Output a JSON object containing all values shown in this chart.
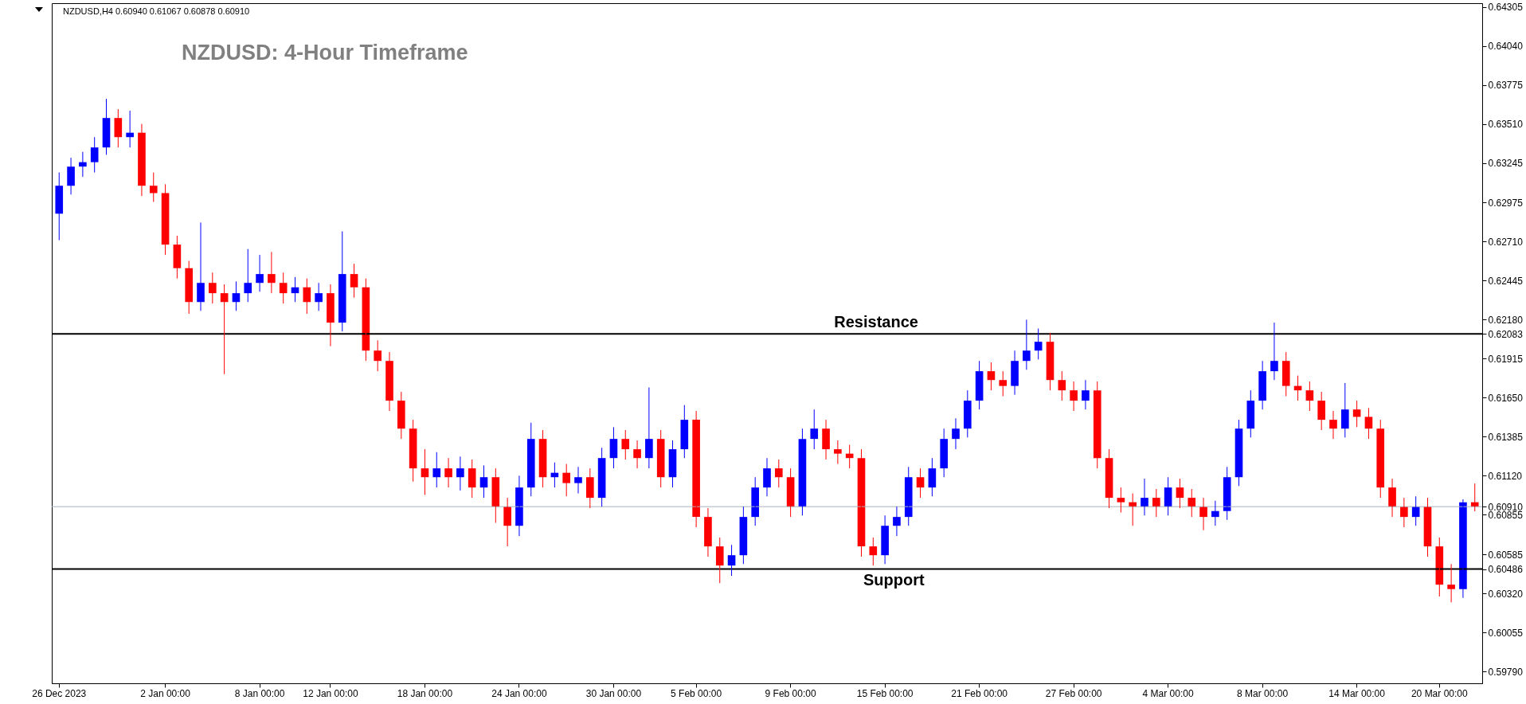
{
  "chart_data": {
    "type": "candlestick",
    "title": "NZDUSD: 4-Hour Timeframe",
    "annotations": [
      "NZDUSD,H4  0.60940 0.61067 0.60878 0.60910"
    ],
    "categories": [
      "26 Dec 2023",
      null,
      null,
      null,
      null,
      null,
      null,
      null,
      null,
      "2 Jan 00:00",
      null,
      null,
      null,
      null,
      null,
      null,
      null,
      "8 Jan 00:00",
      null,
      null,
      null,
      null,
      null,
      "12 Jan 00:00",
      null,
      null,
      null,
      null,
      null,
      null,
      null,
      "18 Jan 00:00",
      null,
      null,
      null,
      null,
      null,
      null,
      null,
      "24 Jan 00:00",
      null,
      null,
      null,
      null,
      null,
      null,
      null,
      "30 Jan 00:00",
      null,
      null,
      null,
      null,
      null,
      null,
      "5 Feb 00:00",
      null,
      null,
      null,
      null,
      null,
      null,
      null,
      "9 Feb 00:00",
      null,
      null,
      null,
      null,
      null,
      null,
      null,
      "15 Feb 00:00",
      null,
      null,
      null,
      null,
      null,
      null,
      null,
      "21 Feb 00:00",
      null,
      null,
      null,
      null,
      null,
      null,
      null,
      "27 Feb 00:00",
      null,
      null,
      null,
      null,
      null,
      null,
      null,
      "4 Mar 00:00",
      null,
      null,
      null,
      null,
      null,
      null,
      null,
      "8 Mar 00:00",
      null,
      null,
      null,
      null,
      null,
      null,
      null,
      "14 Mar 00:00",
      null,
      null,
      null,
      null,
      null,
      null,
      "20 Mar 00:00",
      null,
      null,
      null
    ],
    "ohlc": [
      [
        0.629,
        0.6318,
        0.6272,
        0.6309
      ],
      [
        0.6309,
        0.6328,
        0.6303,
        0.6322
      ],
      [
        0.6322,
        0.6332,
        0.6315,
        0.6325
      ],
      [
        0.6325,
        0.6342,
        0.6318,
        0.6335
      ],
      [
        0.6335,
        0.6368,
        0.633,
        0.6355
      ],
      [
        0.6355,
        0.6361,
        0.6335,
        0.6342
      ],
      [
        0.6342,
        0.636,
        0.6335,
        0.6345
      ],
      [
        0.6345,
        0.6351,
        0.6302,
        0.6309
      ],
      [
        0.6309,
        0.6318,
        0.6298,
        0.6304
      ],
      [
        0.6304,
        0.631,
        0.6262,
        0.6269
      ],
      [
        0.6269,
        0.6275,
        0.6246,
        0.6253
      ],
      [
        0.6253,
        0.6258,
        0.6222,
        0.623
      ],
      [
        0.623,
        0.6284,
        0.6224,
        0.6243
      ],
      [
        0.6243,
        0.625,
        0.6229,
        0.6236
      ],
      [
        0.6236,
        0.6242,
        0.6181,
        0.623
      ],
      [
        0.623,
        0.6244,
        0.6224,
        0.6236
      ],
      [
        0.6236,
        0.6266,
        0.623,
        0.6243
      ],
      [
        0.6243,
        0.6262,
        0.6237,
        0.6249
      ],
      [
        0.6249,
        0.6264,
        0.6236,
        0.6243
      ],
      [
        0.6243,
        0.625,
        0.6229,
        0.6236
      ],
      [
        0.6236,
        0.6247,
        0.623,
        0.624
      ],
      [
        0.624,
        0.6246,
        0.6222,
        0.623
      ],
      [
        0.623,
        0.6243,
        0.6224,
        0.6236
      ],
      [
        0.6236,
        0.6242,
        0.62,
        0.6216
      ],
      [
        0.6216,
        0.6278,
        0.621,
        0.6249
      ],
      [
        0.6249,
        0.6256,
        0.6233,
        0.624
      ],
      [
        0.624,
        0.6246,
        0.619,
        0.6197
      ],
      [
        0.6197,
        0.6204,
        0.6183,
        0.619
      ],
      [
        0.619,
        0.6196,
        0.6156,
        0.6163
      ],
      [
        0.6163,
        0.6169,
        0.6137,
        0.6144
      ],
      [
        0.6144,
        0.615,
        0.6108,
        0.6117
      ],
      [
        0.6117,
        0.613,
        0.6099,
        0.6111
      ],
      [
        0.6111,
        0.6128,
        0.6104,
        0.6117
      ],
      [
        0.6117,
        0.6124,
        0.6104,
        0.6111
      ],
      [
        0.6111,
        0.6125,
        0.6102,
        0.6117
      ],
      [
        0.6117,
        0.6123,
        0.6097,
        0.6104
      ],
      [
        0.6104,
        0.6119,
        0.6097,
        0.6111
      ],
      [
        0.6111,
        0.6117,
        0.608,
        0.6091
      ],
      [
        0.6091,
        0.6097,
        0.6064,
        0.6078
      ],
      [
        0.6078,
        0.6112,
        0.6071,
        0.6104
      ],
      [
        0.6104,
        0.6148,
        0.6098,
        0.6137
      ],
      [
        0.6137,
        0.6143,
        0.6104,
        0.6111
      ],
      [
        0.6111,
        0.6121,
        0.6104,
        0.6114
      ],
      [
        0.6114,
        0.612,
        0.6098,
        0.6107
      ],
      [
        0.6107,
        0.6118,
        0.61,
        0.6111
      ],
      [
        0.6111,
        0.6117,
        0.609,
        0.6097
      ],
      [
        0.6097,
        0.6131,
        0.6091,
        0.6124
      ],
      [
        0.6124,
        0.6145,
        0.6117,
        0.6137
      ],
      [
        0.6137,
        0.6143,
        0.6123,
        0.613
      ],
      [
        0.613,
        0.6136,
        0.6117,
        0.6124
      ],
      [
        0.6124,
        0.6172,
        0.6117,
        0.6137
      ],
      [
        0.6137,
        0.6143,
        0.6104,
        0.6111
      ],
      [
        0.6111,
        0.6136,
        0.6104,
        0.613
      ],
      [
        0.613,
        0.616,
        0.6124,
        0.615
      ],
      [
        0.615,
        0.6156,
        0.6077,
        0.6084
      ],
      [
        0.6084,
        0.609,
        0.6057,
        0.6064
      ],
      [
        0.6064,
        0.607,
        0.6039,
        0.6051
      ],
      [
        0.6051,
        0.6065,
        0.6044,
        0.6058
      ],
      [
        0.6058,
        0.6091,
        0.6052,
        0.6084
      ],
      [
        0.6084,
        0.6111,
        0.6078,
        0.6104
      ],
      [
        0.6104,
        0.6124,
        0.6098,
        0.6117
      ],
      [
        0.6117,
        0.6123,
        0.6104,
        0.6111
      ],
      [
        0.6111,
        0.6117,
        0.6084,
        0.6091
      ],
      [
        0.6091,
        0.6144,
        0.6085,
        0.6137
      ],
      [
        0.6137,
        0.6157,
        0.613,
        0.6144
      ],
      [
        0.6144,
        0.615,
        0.6123,
        0.613
      ],
      [
        0.613,
        0.6136,
        0.612,
        0.6127
      ],
      [
        0.6127,
        0.6133,
        0.6117,
        0.6124
      ],
      [
        0.6124,
        0.613,
        0.6057,
        0.6064
      ],
      [
        0.6064,
        0.607,
        0.6051,
        0.6058
      ],
      [
        0.6058,
        0.6085,
        0.6052,
        0.6078
      ],
      [
        0.6078,
        0.6091,
        0.6071,
        0.6084
      ],
      [
        0.6084,
        0.6118,
        0.6078,
        0.6111
      ],
      [
        0.6111,
        0.6117,
        0.6097,
        0.6104
      ],
      [
        0.6104,
        0.6124,
        0.6098,
        0.6117
      ],
      [
        0.6117,
        0.6144,
        0.6111,
        0.6137
      ],
      [
        0.6137,
        0.6151,
        0.613,
        0.6144
      ],
      [
        0.6144,
        0.617,
        0.6138,
        0.6163
      ],
      [
        0.6163,
        0.619,
        0.6157,
        0.6183
      ],
      [
        0.6183,
        0.6189,
        0.617,
        0.6177
      ],
      [
        0.6177,
        0.6183,
        0.6166,
        0.6173
      ],
      [
        0.6173,
        0.6197,
        0.6167,
        0.619
      ],
      [
        0.619,
        0.6218,
        0.6184,
        0.6197
      ],
      [
        0.6197,
        0.6212,
        0.6191,
        0.6203
      ],
      [
        0.6203,
        0.6209,
        0.617,
        0.6177
      ],
      [
        0.6177,
        0.6183,
        0.6163,
        0.617
      ],
      [
        0.617,
        0.6176,
        0.6156,
        0.6163
      ],
      [
        0.6163,
        0.6177,
        0.6157,
        0.617
      ],
      [
        0.617,
        0.6176,
        0.6117,
        0.6124
      ],
      [
        0.6124,
        0.613,
        0.609,
        0.6097
      ],
      [
        0.6097,
        0.6104,
        0.6087,
        0.6094
      ],
      [
        0.6094,
        0.61,
        0.6078,
        0.6091
      ],
      [
        0.6091,
        0.611,
        0.6085,
        0.6097
      ],
      [
        0.6097,
        0.6103,
        0.6084,
        0.6091
      ],
      [
        0.6091,
        0.6111,
        0.6085,
        0.6104
      ],
      [
        0.6104,
        0.611,
        0.609,
        0.6097
      ],
      [
        0.6097,
        0.6103,
        0.6084,
        0.6091
      ],
      [
        0.6091,
        0.6097,
        0.6075,
        0.6084
      ],
      [
        0.6084,
        0.6095,
        0.6078,
        0.6088
      ],
      [
        0.6088,
        0.6118,
        0.6082,
        0.6111
      ],
      [
        0.6111,
        0.615,
        0.6105,
        0.6144
      ],
      [
        0.6144,
        0.617,
        0.6138,
        0.6163
      ],
      [
        0.6163,
        0.619,
        0.6157,
        0.6183
      ],
      [
        0.6183,
        0.6216,
        0.6177,
        0.619
      ],
      [
        0.619,
        0.6196,
        0.6166,
        0.6173
      ],
      [
        0.6173,
        0.618,
        0.6163,
        0.617
      ],
      [
        0.617,
        0.6176,
        0.6156,
        0.6163
      ],
      [
        0.6163,
        0.6169,
        0.6143,
        0.615
      ],
      [
        0.615,
        0.6156,
        0.6137,
        0.6144
      ],
      [
        0.6144,
        0.6175,
        0.6138,
        0.6157
      ],
      [
        0.6157,
        0.6163,
        0.6145,
        0.6152
      ],
      [
        0.6152,
        0.6158,
        0.6137,
        0.6144
      ],
      [
        0.6144,
        0.615,
        0.6097,
        0.6104
      ],
      [
        0.6104,
        0.611,
        0.6084,
        0.6091
      ],
      [
        0.6091,
        0.6097,
        0.6077,
        0.6084
      ],
      [
        0.6084,
        0.6098,
        0.6078,
        0.6091
      ],
      [
        0.6091,
        0.6097,
        0.6057,
        0.6064
      ],
      [
        0.6064,
        0.607,
        0.603,
        0.6038
      ],
      [
        0.6038,
        0.6052,
        0.6026,
        0.6035
      ],
      [
        0.6035,
        0.6096,
        0.6029,
        0.6094
      ],
      [
        0.6094,
        0.61067,
        0.60878,
        0.6091
      ]
    ],
    "colors": [
      "#0000ff",
      "#0000ff",
      "#0000ff",
      "#0000ff",
      "#0000ff",
      "#ff0000",
      "#0000ff",
      "#ff0000",
      "#ff0000",
      "#ff0000",
      "#ff0000",
      "#ff0000",
      "#0000ff",
      "#ff0000",
      "#ff0000",
      "#0000ff",
      "#0000ff",
      "#0000ff",
      "#ff0000",
      "#ff0000",
      "#0000ff",
      "#ff0000",
      "#0000ff",
      "#ff0000",
      "#0000ff",
      "#ff0000",
      "#ff0000",
      "#ff0000",
      "#ff0000",
      "#ff0000",
      "#ff0000",
      "#ff0000",
      "#0000ff",
      "#ff0000",
      "#0000ff",
      "#ff0000",
      "#0000ff",
      "#ff0000",
      "#ff0000",
      "#0000ff",
      "#0000ff",
      "#ff0000",
      "#0000ff",
      "#ff0000",
      "#0000ff",
      "#ff0000",
      "#0000ff",
      "#0000ff",
      "#ff0000",
      "#ff0000",
      "#0000ff",
      "#ff0000",
      "#0000ff",
      "#0000ff",
      "#ff0000",
      "#ff0000",
      "#ff0000",
      "#0000ff",
      "#0000ff",
      "#0000ff",
      "#0000ff",
      "#ff0000",
      "#ff0000",
      "#0000ff",
      "#0000ff",
      "#ff0000",
      "#ff0000",
      "#ff0000",
      "#ff0000",
      "#ff0000",
      "#0000ff",
      "#0000ff",
      "#0000ff",
      "#ff0000",
      "#0000ff",
      "#0000ff",
      "#0000ff",
      "#0000ff",
      "#0000ff",
      "#ff0000",
      "#ff0000",
      "#0000ff",
      "#0000ff",
      "#0000ff",
      "#ff0000",
      "#ff0000",
      "#ff0000",
      "#0000ff",
      "#ff0000",
      "#ff0000",
      "#ff0000",
      "#ff0000",
      "#0000ff",
      "#ff0000",
      "#0000ff",
      "#ff0000",
      "#ff0000",
      "#ff0000",
      "#0000ff",
      "#0000ff",
      "#0000ff",
      "#0000ff",
      "#0000ff",
      "#0000ff",
      "#ff0000",
      "#ff0000",
      "#ff0000",
      "#ff0000",
      "#ff0000",
      "#0000ff",
      "#ff0000",
      "#ff0000",
      "#ff0000",
      "#ff0000",
      "#ff0000",
      "#0000ff",
      "#ff0000",
      "#ff0000",
      "#ff0000",
      "#0000ff",
      "#ff0000"
    ],
    "ylim": [
      0.5971,
      0.6433
    ],
    "yticks": [
      0.64305,
      {
        "value": 0.6404,
        "label": "0.64040"
      },
      0.63775,
      {
        "value": 0.6351,
        "label": "0.63510"
      },
      0.63245,
      0.62975,
      {
        "value": 0.6271,
        "label": "0.62710"
      },
      0.62445,
      {
        "value": 0.6218,
        "label": "0.62180"
      },
      0.62083,
      0.61915,
      {
        "value": 0.6165,
        "label": "0.61650"
      },
      0.61385,
      {
        "value": 0.6112,
        "label": "0.61120"
      },
      {
        "value": 0.6091,
        "label": "0.60910"
      },
      0.60855,
      0.60585,
      0.60486,
      {
        "value": 0.6032,
        "label": "0.60320"
      },
      0.60055,
      {
        "value": 0.5979,
        "label": "0.59790"
      }
    ],
    "ref_lines": [
      {
        "axis": "y",
        "value": 0.62083,
        "label": "Resistance",
        "color": "#000000"
      },
      {
        "axis": "y",
        "value": 0.60486,
        "label": "Support",
        "color": "#000000"
      },
      {
        "axis": "y",
        "value": 0.6091,
        "label": null,
        "color": "#a8b4bc"
      }
    ],
    "grid": false
  }
}
